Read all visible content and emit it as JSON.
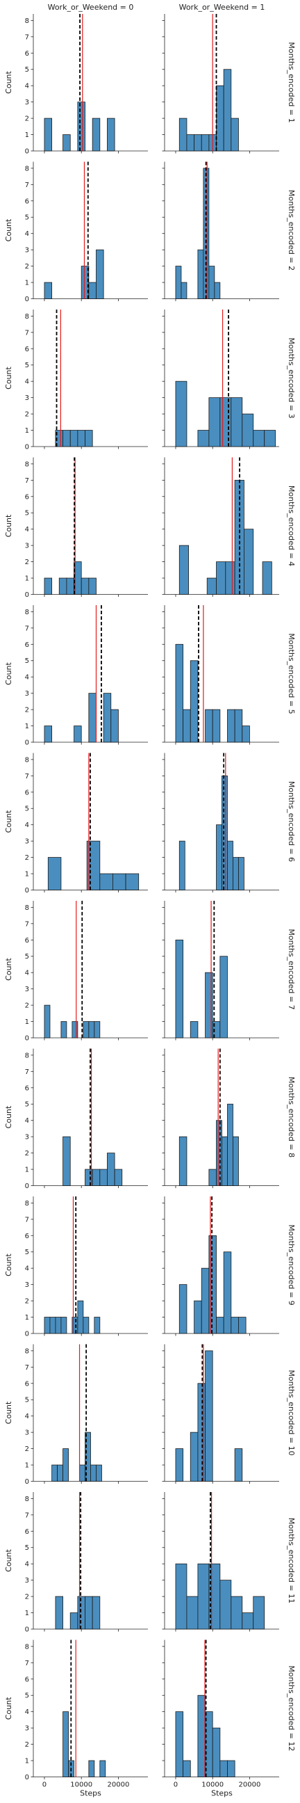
{
  "chart_data": {
    "type": "bar",
    "col_var_label_prefix": "Work_or_Weekend = ",
    "row_var_label_prefix": "Months_encoded = ",
    "columns": [
      "0",
      "1"
    ],
    "rows": [
      "1",
      "2",
      "3",
      "4",
      "5",
      "6",
      "7",
      "8",
      "9",
      "10",
      "11",
      "12"
    ],
    "xlabel": "Steps",
    "ylabel": "Count",
    "xlim": [
      -3000,
      28000
    ],
    "ylim": [
      0,
      8.4
    ],
    "xticks": [
      0,
      10000,
      20000
    ],
    "xtick_labels": [
      "0",
      "10000",
      "20000"
    ],
    "yticks": [
      0,
      1,
      2,
      3,
      4,
      5,
      6,
      7,
      8
    ],
    "bar_color": "#4a8ebf",
    "mean_line_color": "#e31a1c",
    "median_line_color": "#000000",
    "median_line_style": "dashed",
    "grid": false,
    "legend": "none",
    "panels": [
      {
        "row": "1",
        "col": "0",
        "bins": [
          [
            0,
            2000,
            2
          ],
          [
            5000,
            7000,
            1
          ],
          [
            7000,
            9000,
            0
          ],
          [
            9000,
            11000,
            3
          ],
          [
            11000,
            13000,
            0
          ],
          [
            13000,
            15000,
            2
          ],
          [
            15000,
            17000,
            0
          ],
          [
            17000,
            19000,
            2
          ]
        ],
        "mean": 10300,
        "median": 9600
      },
      {
        "row": "1",
        "col": "1",
        "bins": [
          [
            1000,
            3000,
            2
          ],
          [
            3000,
            5000,
            1
          ],
          [
            5000,
            7000,
            1
          ],
          [
            7000,
            9000,
            1
          ],
          [
            9000,
            11000,
            1
          ],
          [
            11000,
            13000,
            4
          ],
          [
            13000,
            15000,
            5
          ],
          [
            15000,
            17000,
            2
          ]
        ],
        "mean": 10000,
        "median": 11000
      },
      {
        "row": "2",
        "col": "0",
        "bins": [
          [
            0,
            2000,
            1
          ],
          [
            2000,
            4000,
            0
          ],
          [
            4000,
            6000,
            0
          ],
          [
            6000,
            8000,
            0
          ],
          [
            8000,
            10000,
            0
          ],
          [
            10000,
            12000,
            2
          ],
          [
            12000,
            14000,
            1
          ],
          [
            14000,
            16000,
            3
          ]
        ],
        "mean": 10800,
        "median": 11800
      },
      {
        "row": "2",
        "col": "1",
        "bins": [
          [
            0,
            1500,
            2
          ],
          [
            1500,
            3000,
            1
          ],
          [
            3000,
            4500,
            0
          ],
          [
            4500,
            6000,
            0
          ],
          [
            6000,
            7500,
            3
          ],
          [
            7500,
            9000,
            8
          ],
          [
            9000,
            10500,
            2
          ],
          [
            10500,
            12000,
            1
          ]
        ],
        "mean": 8500,
        "median": 8200
      },
      {
        "row": "3",
        "col": "0",
        "bins": [
          [
            3000,
            5000,
            1
          ],
          [
            5000,
            7000,
            1
          ],
          [
            7000,
            9000,
            1
          ],
          [
            9000,
            11000,
            1
          ],
          [
            11000,
            13000,
            1
          ]
        ],
        "mean": 4400,
        "median": 3300
      },
      {
        "row": "3",
        "col": "1",
        "bins": [
          [
            0,
            3000,
            4
          ],
          [
            3000,
            6000,
            0
          ],
          [
            6000,
            9000,
            1
          ],
          [
            9000,
            12000,
            3
          ],
          [
            12000,
            15000,
            3
          ],
          [
            15000,
            18000,
            3
          ],
          [
            18000,
            21000,
            2
          ],
          [
            21000,
            24000,
            1
          ],
          [
            24000,
            27000,
            1
          ]
        ],
        "mean": 12700,
        "median": 14300
      },
      {
        "row": "4",
        "col": "0",
        "bins": [
          [
            0,
            2000,
            1
          ],
          [
            2000,
            4000,
            0
          ],
          [
            4000,
            6000,
            1
          ],
          [
            6000,
            8000,
            1
          ],
          [
            8000,
            10000,
            2
          ],
          [
            10000,
            12000,
            1
          ],
          [
            12000,
            14000,
            1
          ]
        ],
        "mean": 8300,
        "median": 8100
      },
      {
        "row": "4",
        "col": "1",
        "bins": [
          [
            1000,
            3500,
            3
          ],
          [
            3500,
            6000,
            0
          ],
          [
            6000,
            8500,
            0
          ],
          [
            8500,
            11000,
            1
          ],
          [
            11000,
            13500,
            2
          ],
          [
            13500,
            16000,
            2
          ],
          [
            16000,
            18500,
            7
          ],
          [
            18500,
            21000,
            4
          ],
          [
            21000,
            23500,
            0
          ],
          [
            23500,
            26000,
            2
          ]
        ],
        "mean": 15300,
        "median": 17300
      },
      {
        "row": "5",
        "col": "0",
        "bins": [
          [
            0,
            2000,
            1
          ],
          [
            2000,
            8000,
            0
          ],
          [
            8000,
            10000,
            1
          ],
          [
            10000,
            12000,
            0
          ],
          [
            12000,
            14000,
            3
          ],
          [
            14000,
            16000,
            0
          ],
          [
            16000,
            18000,
            3
          ],
          [
            18000,
            20000,
            2
          ]
        ],
        "mean": 14000,
        "median": 15400
      },
      {
        "row": "5",
        "col": "1",
        "bins": [
          [
            0,
            2000,
            6
          ],
          [
            2000,
            4000,
            2
          ],
          [
            4000,
            6000,
            5
          ],
          [
            6000,
            8000,
            0
          ],
          [
            8000,
            10000,
            2
          ],
          [
            10000,
            12000,
            2
          ],
          [
            12000,
            14000,
            0
          ],
          [
            14000,
            16000,
            2
          ],
          [
            16000,
            18000,
            2
          ],
          [
            18000,
            20000,
            1
          ]
        ],
        "mean": 7500,
        "median": 6200
      },
      {
        "row": "6",
        "col": "0",
        "bins": [
          [
            1000,
            4500,
            2
          ],
          [
            4500,
            8000,
            0
          ],
          [
            8000,
            11500,
            0
          ],
          [
            11500,
            15000,
            3
          ],
          [
            15000,
            18500,
            1
          ],
          [
            18500,
            22000,
            1
          ],
          [
            22000,
            25500,
            1
          ]
        ],
        "mean": 12000,
        "median": 12400
      },
      {
        "row": "6",
        "col": "1",
        "bins": [
          [
            1000,
            2500,
            3
          ],
          [
            2500,
            4000,
            0
          ],
          [
            4000,
            11000,
            0
          ],
          [
            11000,
            12500,
            4
          ],
          [
            12500,
            14000,
            7
          ],
          [
            14000,
            15500,
            3
          ],
          [
            15500,
            17000,
            2
          ],
          [
            17000,
            18500,
            2
          ]
        ],
        "mean": 13500,
        "median": 13000
      },
      {
        "row": "7",
        "col": "0",
        "bins": [
          [
            0,
            1500,
            2
          ],
          [
            1500,
            3000,
            0
          ],
          [
            3000,
            4500,
            0
          ],
          [
            4500,
            6000,
            1
          ],
          [
            6000,
            7500,
            0
          ],
          [
            7500,
            9000,
            1
          ],
          [
            9000,
            10500,
            0
          ],
          [
            10500,
            12000,
            1
          ],
          [
            12000,
            13500,
            1
          ],
          [
            13500,
            15000,
            1
          ]
        ],
        "mean": 8600,
        "median": 10200
      },
      {
        "row": "7",
        "col": "1",
        "bins": [
          [
            0,
            2000,
            6
          ],
          [
            2000,
            4000,
            0
          ],
          [
            4000,
            6000,
            1
          ],
          [
            6000,
            8000,
            0
          ],
          [
            8000,
            10000,
            4
          ],
          [
            10000,
            12000,
            1
          ],
          [
            12000,
            14000,
            5
          ]
        ],
        "mean": 9600,
        "median": 10400
      },
      {
        "row": "8",
        "col": "0",
        "bins": [
          [
            5000,
            7000,
            3
          ],
          [
            7000,
            11000,
            0
          ],
          [
            11000,
            13000,
            1
          ],
          [
            13000,
            15000,
            1
          ],
          [
            15000,
            17000,
            1
          ],
          [
            17000,
            19000,
            2
          ],
          [
            19000,
            21000,
            1
          ]
        ],
        "mean": 12700,
        "median": 12400
      },
      {
        "row": "8",
        "col": "1",
        "bins": [
          [
            1000,
            3000,
            3
          ],
          [
            3000,
            9000,
            0
          ],
          [
            9000,
            11000,
            1
          ],
          [
            11000,
            12500,
            4
          ],
          [
            12500,
            14000,
            3
          ],
          [
            14000,
            15500,
            5
          ],
          [
            15500,
            17000,
            3
          ]
        ],
        "mean": 11500,
        "median": 12000
      },
      {
        "row": "9",
        "col": "0",
        "bins": [
          [
            0,
            1500,
            1
          ],
          [
            1500,
            3000,
            1
          ],
          [
            3000,
            4500,
            1
          ],
          [
            4500,
            6000,
            1
          ],
          [
            6000,
            7500,
            0
          ],
          [
            7500,
            9000,
            1
          ],
          [
            9000,
            10500,
            2
          ],
          [
            10500,
            12000,
            1
          ],
          [
            12000,
            13500,
            0
          ],
          [
            13500,
            15000,
            1
          ]
        ],
        "mean": 7800,
        "median": 8500
      },
      {
        "row": "9",
        "col": "1",
        "bins": [
          [
            1000,
            3000,
            3
          ],
          [
            3000,
            5000,
            0
          ],
          [
            5000,
            7000,
            2
          ],
          [
            7000,
            9000,
            4
          ],
          [
            9000,
            11000,
            6
          ],
          [
            11000,
            13000,
            1
          ],
          [
            13000,
            15000,
            5
          ],
          [
            15000,
            17000,
            1
          ],
          [
            17000,
            19000,
            1
          ]
        ],
        "mean": 9400,
        "median": 9800
      },
      {
        "row": "10",
        "col": "0",
        "bins": [
          [
            0,
            2000,
            0
          ],
          [
            2000,
            3500,
            1
          ],
          [
            3500,
            5000,
            1
          ],
          [
            5000,
            6500,
            2
          ],
          [
            6500,
            8000,
            0
          ],
          [
            8000,
            9500,
            0
          ],
          [
            9500,
            11000,
            1
          ],
          [
            11000,
            12500,
            3
          ],
          [
            12500,
            14000,
            1
          ],
          [
            14000,
            15500,
            1
          ]
        ],
        "mean": 9500,
        "median": 11300
      },
      {
        "row": "10",
        "col": "1",
        "bins": [
          [
            0,
            2000,
            2
          ],
          [
            2000,
            4000,
            0
          ],
          [
            4000,
            6000,
            3
          ],
          [
            6000,
            8000,
            6
          ],
          [
            8000,
            10000,
            8
          ],
          [
            10000,
            16000,
            0
          ],
          [
            16000,
            18000,
            2
          ]
        ],
        "mean": 7500,
        "median": 7200
      },
      {
        "row": "11",
        "col": "0",
        "bins": [
          [
            3000,
            5000,
            2
          ],
          [
            5000,
            7000,
            0
          ],
          [
            7000,
            9000,
            1
          ],
          [
            9000,
            11000,
            2
          ],
          [
            11000,
            13000,
            2
          ],
          [
            13000,
            15000,
            2
          ]
        ],
        "mean": 9500,
        "median": 9800
      },
      {
        "row": "11",
        "col": "1",
        "bins": [
          [
            0,
            3000,
            4
          ],
          [
            3000,
            6000,
            2
          ],
          [
            6000,
            9000,
            4
          ],
          [
            9000,
            12000,
            4
          ],
          [
            12000,
            15000,
            3
          ],
          [
            15000,
            18000,
            2
          ],
          [
            18000,
            21000,
            1
          ],
          [
            21000,
            24000,
            2
          ]
        ],
        "mean": 9700,
        "median": 9400
      },
      {
        "row": "12",
        "col": "0",
        "bins": [
          [
            5000,
            6500,
            4
          ],
          [
            6500,
            8000,
            1
          ],
          [
            8000,
            12000,
            0
          ],
          [
            12000,
            13500,
            1
          ],
          [
            13500,
            15000,
            0
          ],
          [
            15000,
            16500,
            1
          ]
        ],
        "mean": 8500,
        "median": 7200
      },
      {
        "row": "12",
        "col": "1",
        "bins": [
          [
            0,
            2000,
            4
          ],
          [
            2000,
            4000,
            1
          ],
          [
            4000,
            6000,
            0
          ],
          [
            6000,
            8000,
            5
          ],
          [
            8000,
            10000,
            4
          ],
          [
            10000,
            12000,
            3
          ],
          [
            12000,
            14000,
            1
          ],
          [
            14000,
            16000,
            1
          ]
        ],
        "mean": 7900,
        "median": 8200
      }
    ]
  }
}
